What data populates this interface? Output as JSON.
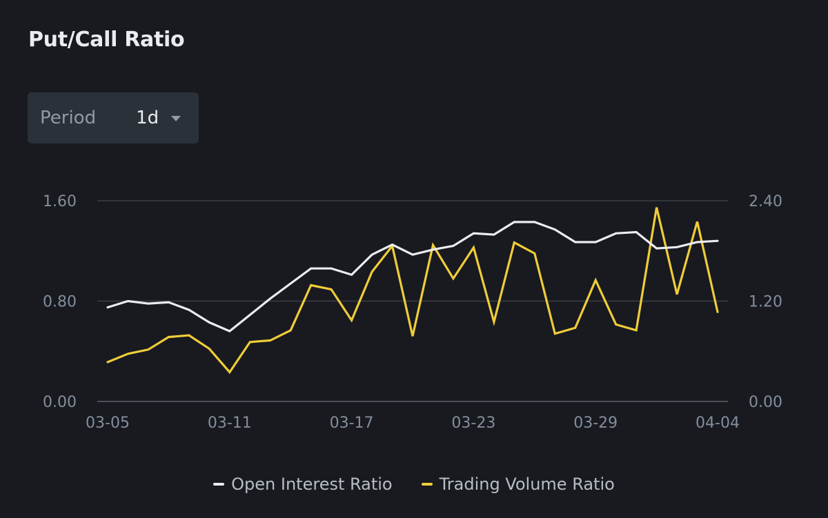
{
  "header": {
    "title": "Put/Call Ratio"
  },
  "period": {
    "label": "Period",
    "value": "1d"
  },
  "colors": {
    "open_interest": "#eaecef",
    "trading_volume": "#f0cc3a",
    "grid": "#3a3e45",
    "axis_text": "#848e9c"
  },
  "chart_data": {
    "type": "line",
    "x_ticks": [
      "03-05",
      "03-11",
      "03-17",
      "03-23",
      "03-29",
      "04-04"
    ],
    "left_axis": {
      "ticks": [
        "0.00",
        "0.80",
        "1.60"
      ],
      "ylim": [
        0,
        1.6
      ]
    },
    "right_axis": {
      "ticks": [
        "0.00",
        "1.20",
        "2.40"
      ],
      "ylim": [
        0,
        2.4
      ]
    },
    "grid": true,
    "legend_position": "bottom-center",
    "x": [
      "03-05",
      "03-06",
      "03-07",
      "03-08",
      "03-09",
      "03-10",
      "03-11",
      "03-12",
      "03-13",
      "03-14",
      "03-15",
      "03-16",
      "03-17",
      "03-18",
      "03-19",
      "03-20",
      "03-21",
      "03-22",
      "03-23",
      "03-24",
      "03-25",
      "03-26",
      "03-27",
      "03-28",
      "03-29",
      "03-30",
      "03-31",
      "04-01",
      "04-02",
      "04-03",
      "04-04"
    ],
    "series": [
      {
        "name": "Open Interest Ratio",
        "axis": "left",
        "values": [
          0.75,
          0.8,
          0.78,
          0.79,
          0.73,
          0.63,
          0.56,
          0.69,
          0.82,
          0.94,
          1.06,
          1.06,
          1.01,
          1.17,
          1.25,
          1.17,
          1.21,
          1.24,
          1.34,
          1.33,
          1.43,
          1.43,
          1.37,
          1.27,
          1.27,
          1.34,
          1.35,
          1.22,
          1.23,
          1.27,
          1.28
        ]
      },
      {
        "name": "Trading Volume Ratio",
        "axis": "right",
        "values": [
          0.47,
          0.57,
          0.62,
          0.77,
          0.79,
          0.63,
          0.35,
          0.71,
          0.73,
          0.85,
          1.39,
          1.34,
          0.97,
          1.55,
          1.86,
          0.78,
          1.87,
          1.47,
          1.84,
          0.95,
          1.9,
          1.77,
          0.81,
          0.88,
          1.45,
          0.92,
          0.85,
          2.32,
          1.28,
          2.15,
          1.07
        ]
      }
    ]
  }
}
